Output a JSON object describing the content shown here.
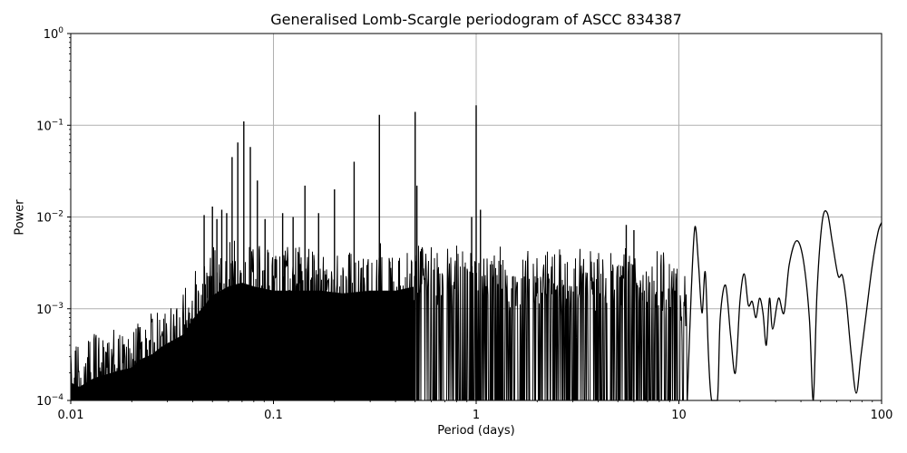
{
  "chart_data": {
    "type": "line",
    "title": "Generalised Lomb-Scargle periodogram of ASCC 834387",
    "xlabel": "Period (days)",
    "ylabel": "Power",
    "xscale": "log",
    "yscale": "log",
    "xlim": [
      0.01,
      100
    ],
    "ylim": [
      0.0001,
      1
    ],
    "grid": true,
    "legend": null,
    "x_ticks": [
      {
        "value": 0.01,
        "label": "0.01"
      },
      {
        "value": 0.1,
        "label": "0.1"
      },
      {
        "value": 1,
        "label": "1"
      },
      {
        "value": 10,
        "label": "10"
      },
      {
        "value": 100,
        "label": "100"
      }
    ],
    "y_ticks": [
      {
        "value": 1,
        "base": "10",
        "exp": "0"
      },
      {
        "value": 0.1,
        "base": "10",
        "exp": "−1"
      },
      {
        "value": 0.01,
        "base": "10",
        "exp": "−2"
      },
      {
        "value": 0.001,
        "base": "10",
        "exp": "−3"
      },
      {
        "value": 0.0001,
        "base": "10",
        "exp": "−4"
      }
    ],
    "line_color": "#000000",
    "grid_color": "#b0b0b0",
    "noise_envelope": {
      "description": "Dense noisy spectrum, upper envelope (period, power)",
      "points": [
        [
          0.01,
          0.00045
        ],
        [
          0.011,
          0.0004
        ],
        [
          0.012,
          0.00045
        ],
        [
          0.013,
          0.0005
        ],
        [
          0.015,
          0.00055
        ],
        [
          0.017,
          0.0006
        ],
        [
          0.02,
          0.00065
        ],
        [
          0.022,
          0.0008
        ],
        [
          0.025,
          0.0009
        ],
        [
          0.028,
          0.0011
        ],
        [
          0.032,
          0.0013
        ],
        [
          0.036,
          0.0015
        ],
        [
          0.04,
          0.0022
        ],
        [
          0.045,
          0.003
        ],
        [
          0.05,
          0.004
        ],
        [
          0.06,
          0.005
        ],
        [
          0.07,
          0.0055
        ],
        [
          0.08,
          0.005
        ],
        [
          0.1,
          0.0045
        ],
        [
          0.13,
          0.0045
        ],
        [
          0.17,
          0.0045
        ],
        [
          0.22,
          0.0042
        ],
        [
          0.3,
          0.0045
        ],
        [
          0.4,
          0.0045
        ],
        [
          0.5,
          0.005
        ],
        [
          0.7,
          0.0045
        ],
        [
          1.0,
          0.005
        ],
        [
          1.5,
          0.0045
        ],
        [
          2.0,
          0.004
        ],
        [
          3.0,
          0.0042
        ],
        [
          4.0,
          0.004
        ],
        [
          5.0,
          0.0045
        ],
        [
          7.0,
          0.004
        ],
        [
          9.0,
          0.0035
        ],
        [
          11.0,
          0.002
        ]
      ]
    },
    "peaks": [
      {
        "period": 0.0455,
        "power": 0.0105
      },
      {
        "period": 0.05,
        "power": 0.013
      },
      {
        "period": 0.0526,
        "power": 0.0095
      },
      {
        "period": 0.0556,
        "power": 0.012
      },
      {
        "period": 0.0588,
        "power": 0.011
      },
      {
        "period": 0.0625,
        "power": 0.045
      },
      {
        "period": 0.0667,
        "power": 0.065
      },
      {
        "period": 0.0714,
        "power": 0.11
      },
      {
        "period": 0.0769,
        "power": 0.058
      },
      {
        "period": 0.0833,
        "power": 0.025
      },
      {
        "period": 0.0909,
        "power": 0.0095
      },
      {
        "period": 0.111,
        "power": 0.011
      },
      {
        "period": 0.125,
        "power": 0.01
      },
      {
        "period": 0.143,
        "power": 0.022
      },
      {
        "period": 0.167,
        "power": 0.011
      },
      {
        "period": 0.2,
        "power": 0.02
      },
      {
        "period": 0.25,
        "power": 0.04
      },
      {
        "period": 0.333,
        "power": 0.13
      },
      {
        "period": 0.5,
        "power": 0.14
      },
      {
        "period": 0.51,
        "power": 0.022
      },
      {
        "period": 0.95,
        "power": 0.01
      },
      {
        "period": 1.0,
        "power": 0.165
      },
      {
        "period": 1.05,
        "power": 0.012
      },
      {
        "period": 5.5,
        "power": 0.0082
      },
      {
        "period": 6.0,
        "power": 0.0072
      }
    ],
    "smooth_tail": {
      "description": "Long-period smooth section (period, power)",
      "points": [
        [
          11.0,
          0.0001
        ],
        [
          11.5,
          0.0015
        ],
        [
          12.0,
          0.0078
        ],
        [
          12.5,
          0.003
        ],
        [
          13.0,
          0.0009
        ],
        [
          13.5,
          0.0025
        ],
        [
          14.0,
          0.0003
        ],
        [
          14.5,
          0.0001
        ],
        [
          15.5,
          0.0001
        ],
        [
          16.0,
          0.0008
        ],
        [
          17.0,
          0.0018
        ],
        [
          18.0,
          0.0005
        ],
        [
          19.0,
          0.0002
        ],
        [
          20.0,
          0.0012
        ],
        [
          21.0,
          0.0024
        ],
        [
          22.0,
          0.0011
        ],
        [
          23.0,
          0.0012
        ],
        [
          24.0,
          0.0008
        ],
        [
          25.0,
          0.0013
        ],
        [
          26.0,
          0.0009
        ],
        [
          27.0,
          0.0004
        ],
        [
          28.0,
          0.0013
        ],
        [
          29.0,
          0.0006
        ],
        [
          31.0,
          0.0013
        ],
        [
          33.0,
          0.0009
        ],
        [
          35.0,
          0.003
        ],
        [
          38.0,
          0.0055
        ],
        [
          41.0,
          0.0035
        ],
        [
          44.0,
          0.0008
        ],
        [
          46.0,
          0.0001
        ],
        [
          48.0,
          0.0015
        ],
        [
          51.0,
          0.009
        ],
        [
          54.0,
          0.011
        ],
        [
          57.0,
          0.0055
        ],
        [
          61.0,
          0.0023
        ],
        [
          64.0,
          0.0023
        ],
        [
          67.0,
          0.0012
        ],
        [
          71.0,
          0.0003
        ],
        [
          75.0,
          0.00012
        ],
        [
          79.0,
          0.0003
        ],
        [
          84.0,
          0.0009
        ],
        [
          90.0,
          0.003
        ],
        [
          96.0,
          0.0068
        ],
        [
          100.0,
          0.0087
        ]
      ]
    }
  }
}
